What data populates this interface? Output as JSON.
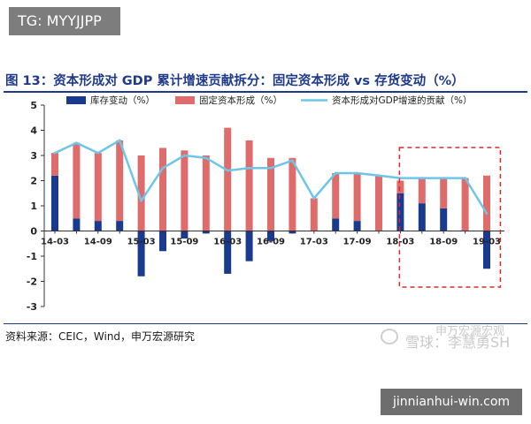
{
  "top_tag": "TG: MYYJJPP",
  "figure_title": "图 13：资本形成对 GDP 累计增速贡献拆分：固定资本形成 vs 存货变动（%）",
  "source_note": "资料来源：CEIC，Wind，申万宏源研究",
  "watermark": {
    "line1": "申万宏源宏观",
    "line2": "雪球：李慧勇SH"
  },
  "site_label": "jinnianhui-win.com",
  "colors": {
    "inventory": "#1a3a8f",
    "fixed_capital": "#e06b6b",
    "contribution": "#6ec6e6",
    "title": "#1f3a8a",
    "highlight_box": "#d62a2a"
  },
  "chart_data": {
    "type": "bar",
    "stacked": true,
    "title": "",
    "xlabel": "",
    "ylabel": "",
    "ylim": [
      -3,
      5
    ],
    "yticks": [
      "5",
      "4",
      "3",
      "2",
      "1",
      "0",
      "-1",
      "-2",
      "-3"
    ],
    "grid": false,
    "legend_position": "top",
    "x": [
      "14-03",
      "14-06",
      "14-09",
      "14-12",
      "15-03",
      "15-06",
      "15-09",
      "15-12",
      "16-03",
      "16-06",
      "16-09",
      "16-12",
      "17-03",
      "17-06",
      "17-09",
      "17-12",
      "18-03",
      "18-06",
      "18-09",
      "18-12",
      "19-03"
    ],
    "x_tick_labels": [
      "14-03",
      "14-09",
      "15-03",
      "15-09",
      "16-03",
      "16-09",
      "17-03",
      "17-09",
      "18-03",
      "18-09",
      "19-03"
    ],
    "series": [
      {
        "name": "库存变动（%）",
        "kind": "bar",
        "values": [
          2.2,
          0.5,
          0.4,
          0.4,
          -1.8,
          -0.8,
          -0.3,
          -0.1,
          -1.7,
          -1.2,
          -0.4,
          -0.1,
          0.0,
          0.5,
          0.4,
          0.0,
          1.5,
          1.1,
          0.9,
          0.0,
          -1.5
        ]
      },
      {
        "name": "固定资本形成（%）",
        "kind": "bar",
        "values": [
          0.9,
          3.0,
          2.7,
          3.2,
          3.0,
          3.3,
          3.2,
          3.0,
          4.1,
          3.6,
          2.9,
          2.9,
          1.3,
          1.8,
          1.9,
          2.2,
          0.5,
          1.0,
          1.2,
          2.1,
          2.2
        ]
      },
      {
        "name": "资本形成对GDP增速的贡献（%）",
        "kind": "line",
        "values": [
          3.1,
          3.5,
          3.1,
          3.6,
          1.2,
          2.5,
          3.0,
          2.9,
          2.4,
          2.5,
          2.5,
          2.8,
          1.3,
          2.3,
          2.3,
          2.2,
          2.1,
          2.1,
          2.1,
          2.1,
          0.7
        ]
      }
    ],
    "highlight_range": [
      "18-06",
      "19-03"
    ]
  }
}
